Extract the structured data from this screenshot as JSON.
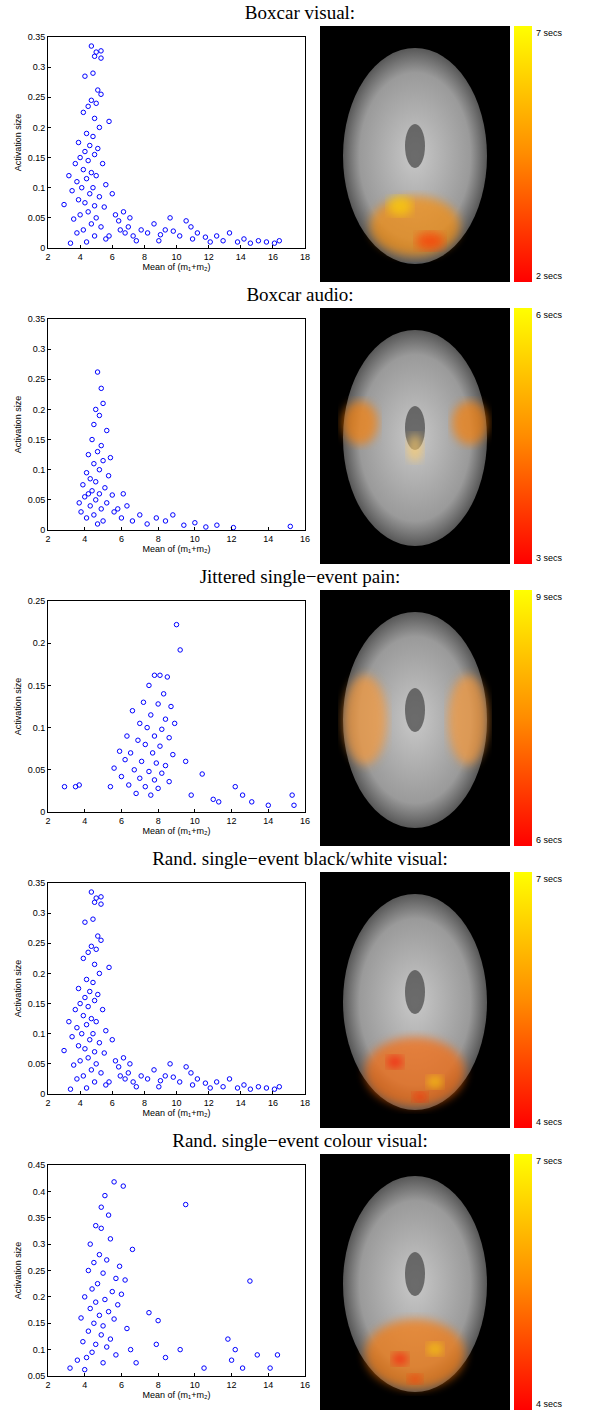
{
  "chart_data": [
    {
      "type": "scatter",
      "title": "Boxcar visual:",
      "x_label": "Mean of (m₁+m₂)",
      "y_label": "Activation size",
      "color": "#0000ff",
      "marker": "circle-open",
      "grid": false,
      "xlim": [
        2,
        18
      ],
      "xticks": [
        2,
        4,
        6,
        8,
        10,
        12,
        14,
        16,
        18
      ],
      "ylim": [
        0,
        0.35
      ],
      "yticks": [
        0,
        0.05,
        0.1,
        0.15,
        0.2,
        0.25,
        0.3,
        0.35
      ],
      "x": [
        4.7,
        5.0,
        5.3,
        4.9,
        5.3,
        4.3,
        4.8,
        5.1,
        5.3,
        4.7,
        4.5,
        5.0,
        4.2,
        5.8,
        4.9,
        5.2,
        4.4,
        4.8,
        3.9,
        4.6,
        5.1,
        4.3,
        4.0,
        4.9,
        3.7,
        4.5,
        5.4,
        4.2,
        3.3,
        4.7,
        5.0,
        3.8,
        4.4,
        5.6,
        4.1,
        4.8,
        3.5,
        4.6,
        5.2,
        6.0,
        3.9,
        4.3,
        4.9,
        3.0,
        5.5,
        4.5,
        4.0,
        5.0,
        6.2,
        3.6,
        4.7,
        5.3,
        4.2,
        3.8,
        6.5,
        4.9,
        5.6,
        4.4,
        3.4,
        5.8,
        6.8,
        7.0,
        7.3,
        7.8,
        8.2,
        8.6,
        9.0,
        9.3,
        9.8,
        10.2,
        10.6,
        11.0,
        11.3,
        11.8,
        12.1,
        12.5,
        12.9,
        13.3,
        13.8,
        14.2,
        14.6,
        15.1,
        15.6,
        16.1,
        16.4,
        6.4,
        7.5,
        8.9,
        10.9,
        9.6,
        7.1,
        6.7
      ],
      "values": [
        0.335,
        0.325,
        0.327,
        0.318,
        0.315,
        0.285,
        0.29,
        0.262,
        0.255,
        0.245,
        0.235,
        0.24,
        0.225,
        0.21,
        0.215,
        0.2,
        0.19,
        0.185,
        0.175,
        0.17,
        0.165,
        0.16,
        0.15,
        0.155,
        0.14,
        0.145,
        0.14,
        0.13,
        0.12,
        0.125,
        0.12,
        0.11,
        0.115,
        0.105,
        0.1,
        0.1,
        0.095,
        0.09,
        0.085,
        0.09,
        0.08,
        0.075,
        0.07,
        0.072,
        0.068,
        0.06,
        0.055,
        0.05,
        0.055,
        0.048,
        0.04,
        0.035,
        0.03,
        0.025,
        0.03,
        0.02,
        0.015,
        0.01,
        0.008,
        0.02,
        0.025,
        0.035,
        0.02,
        0.03,
        0.025,
        0.04,
        0.022,
        0.03,
        0.028,
        0.02,
        0.045,
        0.015,
        0.025,
        0.018,
        0.01,
        0.02,
        0.012,
        0.025,
        0.01,
        0.015,
        0.008,
        0.012,
        0.01,
        0.008,
        0.012,
        0.045,
        0.012,
        0.012,
        0.035,
        0.05,
        0.05,
        0.06
      ],
      "colorbar_range": [
        2,
        7
      ],
      "colorbar_ticks": [
        {
          "value": 2,
          "label": "2 secs"
        },
        {
          "value": 7,
          "label": "7 secs"
        }
      ]
    },
    {
      "type": "scatter",
      "title": "Boxcar audio:",
      "x_label": "Mean of (m₁+m₂)",
      "y_label": "Activation size",
      "color": "#0000ff",
      "marker": "circle-open",
      "grid": false,
      "xlim": [
        2,
        16
      ],
      "xticks": [
        2,
        4,
        6,
        8,
        10,
        12,
        14,
        16
      ],
      "ylim": [
        0,
        0.35
      ],
      "yticks": [
        0,
        0.05,
        0.1,
        0.15,
        0.2,
        0.25,
        0.3,
        0.35
      ],
      "x": [
        4.7,
        4.9,
        5.0,
        4.6,
        4.8,
        4.5,
        5.2,
        4.4,
        4.9,
        4.7,
        4.2,
        5.0,
        4.5,
        4.8,
        4.1,
        5.3,
        4.3,
        4.6,
        3.9,
        5.1,
        4.4,
        4.8,
        5.5,
        4.0,
        4.6,
        3.7,
        5.2,
        4.3,
        4.9,
        3.8,
        5.6,
        4.5,
        4.1,
        5.0,
        4.7,
        5.8,
        6.0,
        6.3,
        6.6,
        7.0,
        7.4,
        7.9,
        8.4,
        8.8,
        9.4,
        10.0,
        10.6,
        11.2,
        12.1,
        15.2,
        5.4,
        4.2,
        6.1
      ],
      "values": [
        0.262,
        0.235,
        0.21,
        0.2,
        0.19,
        0.175,
        0.165,
        0.15,
        0.14,
        0.13,
        0.125,
        0.115,
        0.11,
        0.1,
        0.095,
        0.09,
        0.085,
        0.08,
        0.075,
        0.07,
        0.065,
        0.06,
        0.058,
        0.055,
        0.05,
        0.045,
        0.045,
        0.04,
        0.035,
        0.03,
        0.03,
        0.025,
        0.02,
        0.015,
        0.01,
        0.035,
        0.02,
        0.04,
        0.015,
        0.025,
        0.01,
        0.02,
        0.015,
        0.025,
        0.008,
        0.012,
        0.005,
        0.008,
        0.004,
        0.006,
        0.12,
        0.06,
        0.06
      ],
      "colorbar_range": [
        3,
        6
      ],
      "colorbar_ticks": [
        {
          "value": 3,
          "label": "3 secs"
        },
        {
          "value": 6,
          "label": "6 secs"
        }
      ]
    },
    {
      "type": "scatter",
      "title": "Jittered single−event pain:",
      "x_label": "Mean of (m₁+m₂)",
      "y_label": "Activation size",
      "color": "#0000ff",
      "marker": "circle-open",
      "grid": false,
      "xlim": [
        2,
        16
      ],
      "xticks": [
        2,
        4,
        6,
        8,
        10,
        12,
        14,
        16
      ],
      "ylim": [
        0,
        0.25
      ],
      "yticks": [
        0,
        0.05,
        0.1,
        0.15,
        0.2,
        0.25
      ],
      "x": [
        9.0,
        9.2,
        7.8,
        8.1,
        8.5,
        7.5,
        8.3,
        7.2,
        8.0,
        8.7,
        6.6,
        7.6,
        8.4,
        7.0,
        8.9,
        7.4,
        8.2,
        6.3,
        7.8,
        8.6,
        6.9,
        7.3,
        8.1,
        5.9,
        6.5,
        7.7,
        8.8,
        6.2,
        7.1,
        7.9,
        8.4,
        5.6,
        6.7,
        7.5,
        8.2,
        6.0,
        7.0,
        7.8,
        8.6,
        6.4,
        7.3,
        8.0,
        6.8,
        7.6,
        5.4,
        2.9,
        3.5,
        3.7,
        9.8,
        10.4,
        11.0,
        11.3,
        12.2,
        12.6,
        13.1,
        14.0,
        15.3,
        15.4,
        9.5
      ],
      "values": [
        0.222,
        0.192,
        0.162,
        0.162,
        0.16,
        0.15,
        0.14,
        0.13,
        0.128,
        0.125,
        0.12,
        0.115,
        0.11,
        0.105,
        0.105,
        0.1,
        0.098,
        0.09,
        0.09,
        0.088,
        0.085,
        0.08,
        0.078,
        0.072,
        0.07,
        0.07,
        0.068,
        0.062,
        0.06,
        0.058,
        0.055,
        0.052,
        0.05,
        0.048,
        0.046,
        0.042,
        0.04,
        0.038,
        0.036,
        0.032,
        0.03,
        0.028,
        0.022,
        0.02,
        0.03,
        0.03,
        0.03,
        0.032,
        0.02,
        0.045,
        0.015,
        0.012,
        0.03,
        0.02,
        0.012,
        0.008,
        0.02,
        0.008,
        0.06
      ],
      "colorbar_range": [
        6,
        9
      ],
      "colorbar_ticks": [
        {
          "value": 6,
          "label": "6 secs"
        },
        {
          "value": 9,
          "label": "9 secs"
        }
      ]
    },
    {
      "type": "scatter",
      "title": "Rand. single−event black/white visual:",
      "x_label": "Mean of (m₁+m₂)",
      "y_label": "Activation size",
      "color": "#0000ff",
      "marker": "circle-open",
      "grid": false,
      "xlim": [
        2,
        18
      ],
      "xticks": [
        2,
        4,
        6,
        8,
        10,
        12,
        14,
        16,
        18
      ],
      "ylim": [
        0,
        0.35
      ],
      "yticks": [
        0,
        0.05,
        0.1,
        0.15,
        0.2,
        0.25,
        0.3,
        0.35
      ],
      "x": [
        4.7,
        5.0,
        5.3,
        4.9,
        5.3,
        4.3,
        4.8,
        5.1,
        5.3,
        4.7,
        4.5,
        5.0,
        4.2,
        5.8,
        4.9,
        5.2,
        4.4,
        4.8,
        3.9,
        4.6,
        5.1,
        4.3,
        4.0,
        4.9,
        3.7,
        4.5,
        5.4,
        4.2,
        3.3,
        4.7,
        5.0,
        3.8,
        4.4,
        5.6,
        4.1,
        4.8,
        3.5,
        4.6,
        5.2,
        6.0,
        3.9,
        4.3,
        4.9,
        3.0,
        5.5,
        4.5,
        4.0,
        5.0,
        6.2,
        3.6,
        4.7,
        5.3,
        4.2,
        3.8,
        6.5,
        4.9,
        5.6,
        4.4,
        3.4,
        5.8,
        6.8,
        7.0,
        7.3,
        7.8,
        8.2,
        8.6,
        9.0,
        9.3,
        9.8,
        10.2,
        10.6,
        11.0,
        11.3,
        11.8,
        12.1,
        12.5,
        12.9,
        13.3,
        13.8,
        14.2,
        14.6,
        15.1,
        15.6,
        16.1,
        16.4,
        6.4,
        7.5,
        8.9,
        10.9,
        9.6,
        7.1,
        6.7
      ],
      "values": [
        0.335,
        0.325,
        0.327,
        0.318,
        0.315,
        0.285,
        0.29,
        0.262,
        0.255,
        0.245,
        0.235,
        0.24,
        0.225,
        0.21,
        0.215,
        0.2,
        0.19,
        0.185,
        0.175,
        0.17,
        0.165,
        0.16,
        0.15,
        0.155,
        0.14,
        0.145,
        0.14,
        0.13,
        0.12,
        0.125,
        0.12,
        0.11,
        0.115,
        0.105,
        0.1,
        0.1,
        0.095,
        0.09,
        0.085,
        0.09,
        0.08,
        0.075,
        0.07,
        0.072,
        0.068,
        0.06,
        0.055,
        0.05,
        0.055,
        0.048,
        0.04,
        0.035,
        0.03,
        0.025,
        0.03,
        0.02,
        0.015,
        0.01,
        0.008,
        0.02,
        0.025,
        0.035,
        0.02,
        0.03,
        0.025,
        0.04,
        0.022,
        0.03,
        0.028,
        0.02,
        0.045,
        0.015,
        0.025,
        0.018,
        0.01,
        0.02,
        0.012,
        0.025,
        0.01,
        0.015,
        0.008,
        0.012,
        0.01,
        0.008,
        0.012,
        0.045,
        0.012,
        0.012,
        0.035,
        0.05,
        0.05,
        0.06
      ],
      "colorbar_range": [
        4,
        7
      ],
      "colorbar_ticks": [
        {
          "value": 4,
          "label": "4 secs"
        },
        {
          "value": 7,
          "label": "7 secs"
        }
      ]
    },
    {
      "type": "scatter",
      "title": "Rand. single−event colour visual:",
      "x_label": "Mean of (m₁+m₂)",
      "y_label": "Activation size",
      "color": "#0000ff",
      "marker": "circle-open",
      "grid": false,
      "xlim": [
        2,
        16
      ],
      "xticks": [
        2,
        4,
        6,
        8,
        10,
        12,
        14,
        16
      ],
      "ylim": [
        0.05,
        0.45
      ],
      "yticks": [
        0.05,
        0.1,
        0.15,
        0.2,
        0.25,
        0.3,
        0.35,
        0.4,
        0.45
      ],
      "x": [
        5.6,
        6.1,
        5.1,
        4.9,
        9.5,
        5.3,
        4.6,
        4.9,
        4.3,
        5.4,
        6.6,
        4.8,
        5.2,
        4.5,
        5.9,
        4.2,
        5.0,
        5.7,
        6.2,
        4.7,
        13.0,
        4.4,
        5.5,
        6.0,
        4.0,
        5.1,
        4.6,
        5.8,
        4.3,
        5.3,
        4.8,
        3.8,
        5.6,
        4.5,
        5.0,
        6.3,
        4.2,
        4.9,
        5.4,
        3.9,
        4.6,
        5.2,
        6.5,
        4.4,
        5.7,
        4.1,
        3.6,
        5.0,
        6.8,
        7.5,
        8.0,
        7.9,
        8.4,
        9.2,
        10.5,
        11.8,
        12.2,
        12.0,
        12.6,
        13.4,
        14.1,
        14.5,
        3.2,
        4.0
      ],
      "values": [
        0.418,
        0.41,
        0.392,
        0.37,
        0.375,
        0.355,
        0.335,
        0.33,
        0.3,
        0.31,
        0.29,
        0.28,
        0.27,
        0.265,
        0.258,
        0.25,
        0.245,
        0.235,
        0.232,
        0.225,
        0.23,
        0.215,
        0.21,
        0.205,
        0.2,
        0.195,
        0.19,
        0.185,
        0.178,
        0.172,
        0.165,
        0.16,
        0.158,
        0.15,
        0.145,
        0.14,
        0.135,
        0.128,
        0.12,
        0.115,
        0.11,
        0.105,
        0.1,
        0.095,
        0.09,
        0.085,
        0.08,
        0.075,
        0.075,
        0.17,
        0.155,
        0.11,
        0.085,
        0.1,
        0.065,
        0.12,
        0.1,
        0.08,
        0.065,
        0.09,
        0.065,
        0.09,
        0.065,
        0.062
      ],
      "colorbar_range": [
        4,
        7
      ],
      "colorbar_ticks": [
        {
          "value": 4,
          "label": "4 secs"
        },
        {
          "value": 7,
          "label": "7 secs"
        }
      ]
    }
  ]
}
